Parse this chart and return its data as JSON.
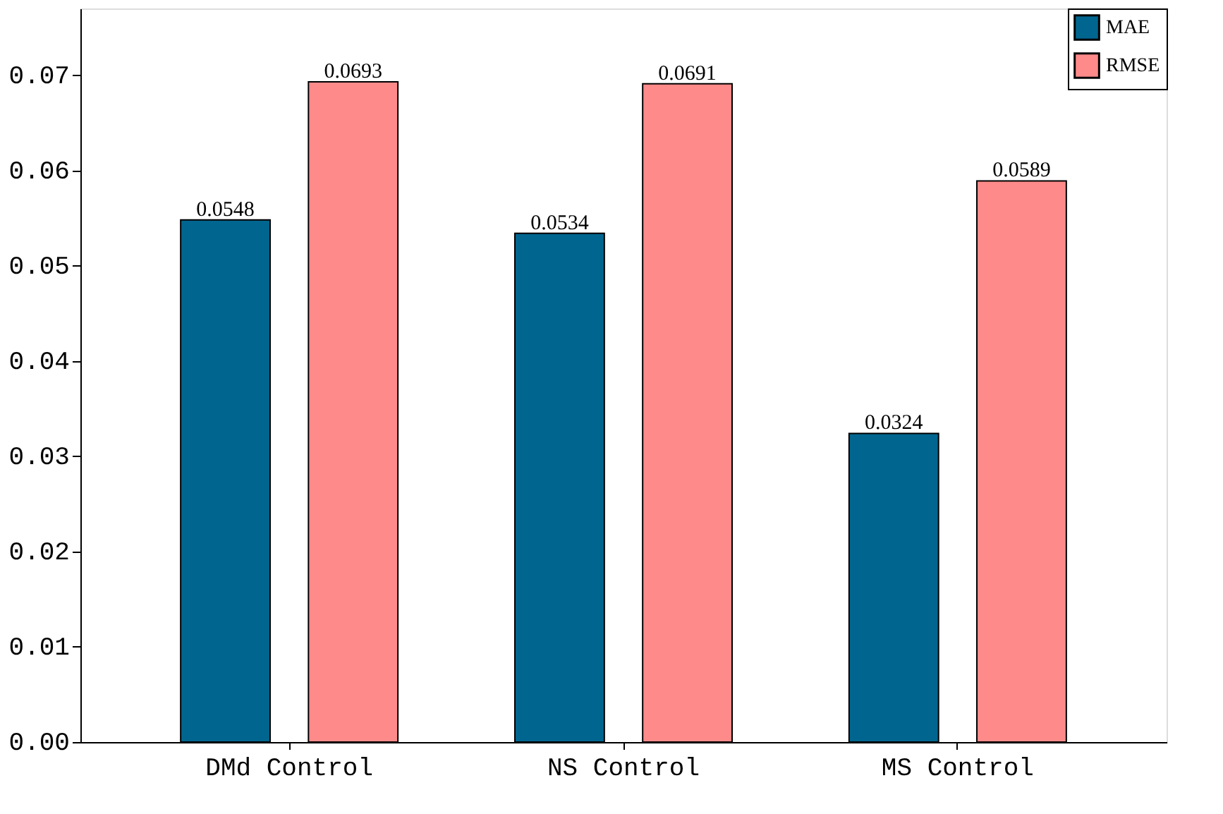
{
  "chart_data": {
    "type": "bar",
    "categories": [
      "DMd Control",
      "NS Control",
      "MS Control"
    ],
    "series": [
      {
        "name": "MAE",
        "color": "#00668f",
        "values": [
          0.0548,
          0.0534,
          0.0324
        ]
      },
      {
        "name": "RMSE",
        "color": "#ff8a8a",
        "values": [
          0.0693,
          0.0691,
          0.0589
        ]
      }
    ],
    "ylim": [
      0,
      0.077
    ],
    "yticks": [
      {
        "value": 0,
        "label": "0.00"
      },
      {
        "value": 0.01,
        "label": "0.01"
      },
      {
        "value": 0.02,
        "label": "0.02"
      },
      {
        "value": 0.03,
        "label": "0.03"
      },
      {
        "value": 0.04,
        "label": "0.04"
      },
      {
        "value": 0.05,
        "label": "0.05"
      },
      {
        "value": 0.06,
        "label": "0.06"
      },
      {
        "value": 0.07,
        "label": "0.07"
      }
    ],
    "data_labels": true,
    "legend": "top right",
    "grid": false
  }
}
